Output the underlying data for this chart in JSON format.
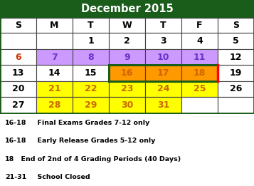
{
  "title": "December 2015",
  "title_bg": "#1a5c1a",
  "title_color": "white",
  "days_header": [
    "S",
    "M",
    "T",
    "W",
    "T",
    "F",
    "S"
  ],
  "weeks": [
    [
      null,
      null,
      1,
      2,
      3,
      4,
      5
    ],
    [
      6,
      7,
      8,
      9,
      10,
      11,
      12
    ],
    [
      13,
      14,
      15,
      16,
      17,
      18,
      19
    ],
    [
      20,
      21,
      22,
      23,
      24,
      25,
      26
    ],
    [
      27,
      28,
      29,
      30,
      31,
      null,
      null
    ]
  ],
  "cell_colors": {
    "7": "#cc99ff",
    "8": "#cc99ff",
    "9": "#cc99ff",
    "10": "#cc99ff",
    "11": "#cc99ff",
    "16": "#ff9900",
    "17": "#ff9900",
    "18": "#ff9900",
    "21": "#ffff00",
    "22": "#ffff00",
    "23": "#ffff00",
    "24": "#ffff00",
    "25": "#ffff00",
    "28": "#ffff00",
    "29": "#ffff00",
    "30": "#ffff00",
    "31": "#ffff00"
  },
  "day_text_colors": {
    "6": "#cc3300",
    "7": "#6633cc",
    "8": "#6633cc",
    "9": "#6633cc",
    "10": "#6633cc",
    "11": "#6633cc",
    "12": "black",
    "13": "black",
    "14": "black",
    "15": "black",
    "16": "#cc6600",
    "17": "#cc6600",
    "18": "#cc6600",
    "19": "black",
    "20": "black",
    "21": "#cc6600",
    "22": "#cc6600",
    "23": "#cc6600",
    "24": "#cc6600",
    "25": "#cc6600",
    "26": "black",
    "27": "black",
    "28": "#cc6600",
    "29": "#cc6600",
    "30": "#cc6600",
    "31": "#cc6600"
  },
  "legend": [
    {
      "prefix": "16-18",
      "text": "  Final Exams Grades 7-12 only"
    },
    {
      "prefix": "16-18",
      "text": "  Early Release Grades 5-12 only"
    },
    {
      "prefix": "18",
      "text": "  End of 2nd of 4 Grading Periods (40 Days)"
    },
    {
      "prefix": "21-31",
      "text": "  School Closed"
    }
  ],
  "outer_border_color": "#1a5c1a",
  "grid_color": "#444444",
  "green_border_cols": [
    3,
    4,
    5
  ],
  "green_border_row": 2,
  "red_border_col": 5,
  "red_border_row": 2
}
